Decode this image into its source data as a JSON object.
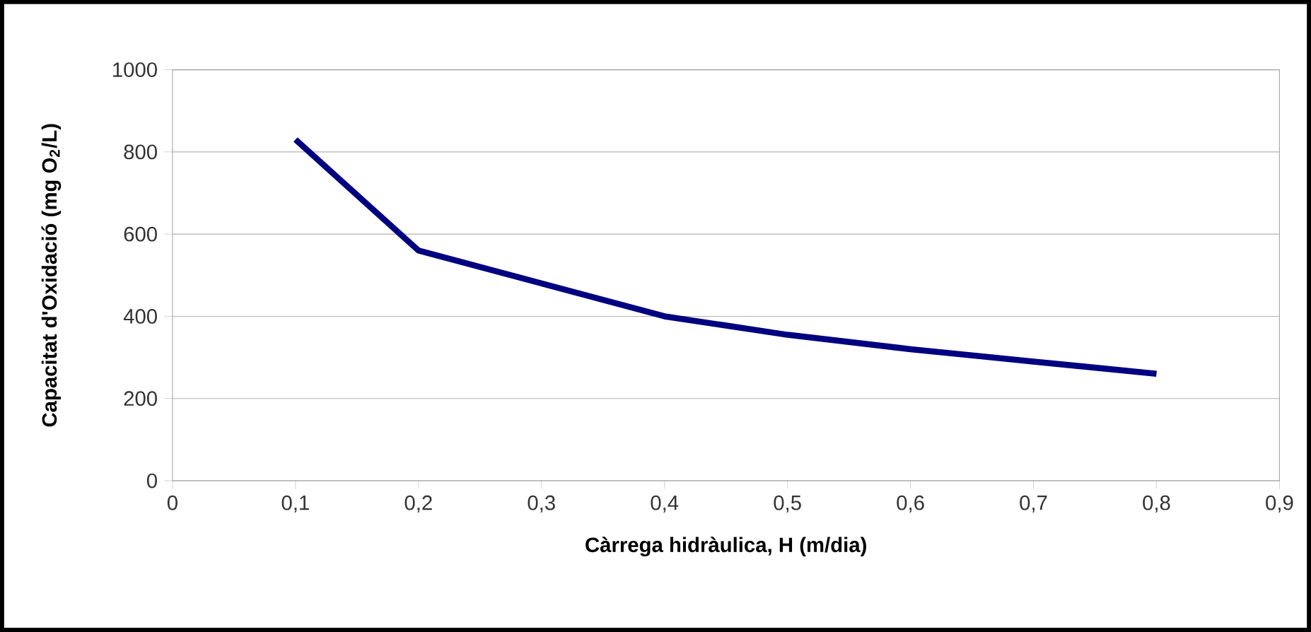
{
  "chart_data": {
    "type": "line",
    "xlabel": "Càrrega hidràulica, H (m/dia)",
    "ylabel": "Capacitat d'Oxidació (mg O$_{2}$/L)",
    "series": [
      {
        "color": "#000080",
        "x": [
          0.1,
          0.2,
          0.4,
          0.5,
          0.6,
          0.7,
          0.8
        ],
        "values": [
          830,
          560,
          400,
          355,
          320,
          290,
          260
        ]
      }
    ],
    "xlim": [
      0,
      0.9
    ],
    "xticks": [
      0,
      {
        "value": 0.1,
        "label": "0,1"
      },
      {
        "value": 0.2,
        "label": "0,2"
      },
      {
        "value": 0.3,
        "label": "0,3"
      },
      {
        "value": 0.4,
        "label": "0,4"
      },
      {
        "value": 0.5,
        "label": "0,5"
      },
      {
        "value": 0.6,
        "label": "0,6"
      },
      {
        "value": 0.7,
        "label": "0,7"
      },
      {
        "value": 0.8,
        "label": "0,8"
      },
      {
        "value": 0.9,
        "label": "0,9"
      }
    ],
    "ylim": [
      0,
      1000
    ],
    "yticks": [
      0,
      200,
      400,
      600,
      800,
      1000
    ],
    "grid": "y",
    "marker": "none",
    "line_style": "solid"
  }
}
